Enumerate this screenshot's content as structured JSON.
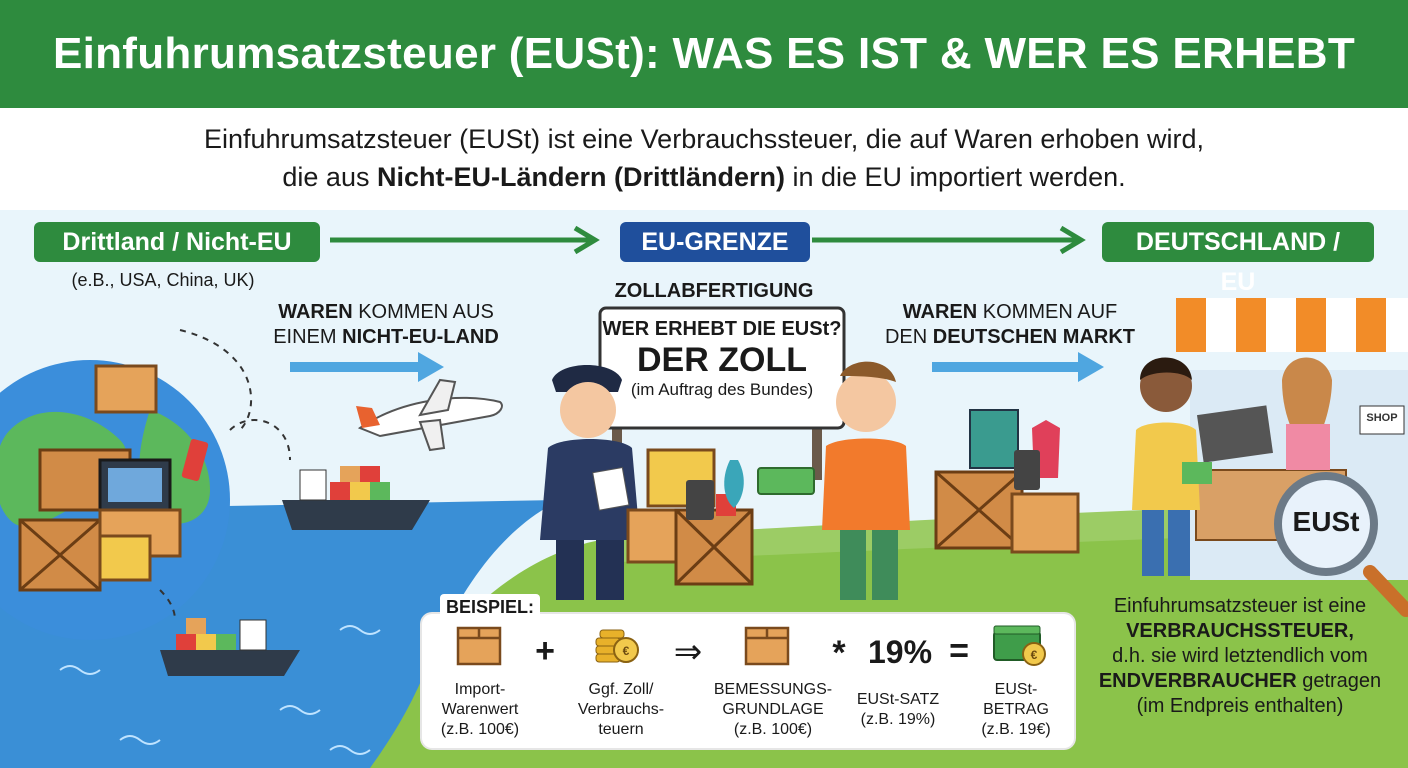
{
  "header": {
    "title": "Einfuhrumsatzsteuer (EUSt): WAS ES IST & WER ES ERHEBT"
  },
  "intro": {
    "line1": "Einfuhrumsatzsteuer (EUSt) ist eine Verbrauchssteuer, die auf Waren erhoben wird,",
    "line2_pre": "die aus ",
    "line2_bold": "Nicht-EU-Ländern (Drittländern)",
    "line2_post": " in die EU importiert werden."
  },
  "regions": {
    "left": {
      "label": "Drittland / Nicht-EU",
      "examples": "(e.B., USA, China, UK)"
    },
    "center": {
      "label": "EU-GRENZE",
      "sub": "ZOLLABFERTIGUNG"
    },
    "right": {
      "label": "DEUTSCHLAND / EU"
    }
  },
  "flow": {
    "left_bold1": "WAREN",
    "left_text1": " KOMMEN AUS",
    "left_text2": "EINEM ",
    "left_bold2": "NICHT-EU-LAND",
    "right_bold1": "WAREN",
    "right_text1": " KOMMEN AUF",
    "right_text2": "DEN ",
    "right_bold2": "DEUTSCHEN MARKT"
  },
  "sign": {
    "question": "WER ERHEBT DIE EUSt?",
    "answer": "DER ZOLL",
    "note": "(im Auftrag des Bundes)"
  },
  "shop": {
    "sign": "SHOP",
    "magnifier": "EUSt"
  },
  "example": {
    "tag": "BEISPIEL:",
    "items": [
      {
        "l1": "Import-",
        "l2": "Warenwert",
        "l3": "(z.B. 100€)"
      },
      {
        "l1": "Ggf. Zoll/",
        "l2": "Verbrauchs-",
        "l3": "teuern"
      },
      {
        "l1": "BEMESSUNGS-",
        "l2": "GRUNDLAGE",
        "l3": "(z.B. 100€)"
      },
      {
        "l1": "EUSt-SATZ",
        "l2": "(z.B. 19%)",
        "l3": ""
      },
      {
        "l1": "EUSt-",
        "l2": "BETRAG",
        "l3": "(z.B. 19€)"
      }
    ],
    "ops": {
      "plus": "+",
      "arrow": "⇒",
      "times": "*",
      "equals": "="
    },
    "rate": "19%",
    "coin_symbol": "€"
  },
  "note": {
    "l1": "Einfuhrumsatzsteuer ist eine",
    "l2_bold": "VERBRAUCHSSTEUER,",
    "l3": "d.h. sie wird letztendlich vom",
    "l4_bold": "ENDVERBRAUCHER",
    "l4_text": " getragen",
    "l5": "(im Endpreis enthalten)"
  },
  "colors": {
    "green": "#2e8b3e",
    "blue": "#1f4f9c",
    "sea": "#3a8fd6",
    "grass": "#8bc34a"
  }
}
